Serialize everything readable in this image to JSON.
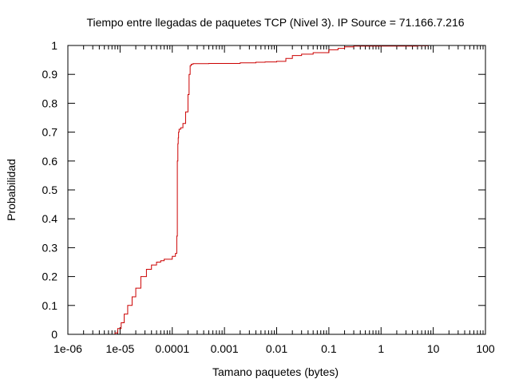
{
  "chart_data": {
    "type": "line",
    "title": "Tiempo entre llegadas de paquetes TCP (Nivel 3). IP Source = 71.166.7.216",
    "xlabel": "Tamano paquetes (bytes)",
    "ylabel": "Probabilidad",
    "x_scale": "log",
    "xlim": [
      1e-06,
      100
    ],
    "ylim": [
      0,
      1
    ],
    "x_ticks": [
      1e-06,
      1e-05,
      0.0001,
      0.001,
      0.01,
      0.1,
      1,
      10,
      100
    ],
    "x_tick_labels": [
      "1e-06",
      "1e-05",
      "0.0001",
      "0.001",
      "0.01",
      "0.1",
      "1",
      "10",
      "100"
    ],
    "y_ticks": [
      0,
      0.1,
      0.2,
      0.3,
      0.4,
      0.5,
      0.6,
      0.7,
      0.8,
      0.9,
      1
    ],
    "y_tick_labels": [
      "0",
      "0.1",
      "0.2",
      "0.3",
      "0.4",
      "0.5",
      "0.6",
      "0.7",
      "0.8",
      "0.9",
      "1"
    ],
    "grid": false,
    "legend": "none",
    "line_color": "#cc0000",
    "series": [
      {
        "x": [
          7e-06,
          8e-06,
          9e-06,
          1.05e-05,
          1.2e-05,
          1.4e-05,
          1.7e-05,
          2e-05,
          2.5e-05,
          3.2e-05,
          4e-05,
          5e-05,
          6e-05,
          7e-05,
          8.5e-05,
          0.0001,
          0.000115,
          0.000122,
          0.000125,
          0.000128,
          0.00013,
          0.000132,
          0.000135,
          0.000145,
          0.00016,
          0.00018,
          0.0002,
          0.00021,
          0.00022,
          0.00023,
          0.00025,
          0.0003,
          0.0005,
          0.001,
          0.002,
          0.004,
          0.006,
          0.01,
          0.015,
          0.02,
          0.03,
          0.05,
          0.1,
          0.15,
          0.2,
          0.3,
          1,
          5,
          8
        ],
        "y": [
          0,
          0.005,
          0.02,
          0.04,
          0.07,
          0.1,
          0.13,
          0.16,
          0.2,
          0.225,
          0.24,
          0.25,
          0.255,
          0.26,
          0.26,
          0.27,
          0.28,
          0.34,
          0.6,
          0.66,
          0.68,
          0.7,
          0.71,
          0.715,
          0.73,
          0.77,
          0.83,
          0.9,
          0.93,
          0.935,
          0.937,
          0.937,
          0.938,
          0.938,
          0.94,
          0.942,
          0.943,
          0.945,
          0.955,
          0.965,
          0.97,
          0.975,
          0.985,
          0.99,
          0.995,
          0.998,
          0.998,
          0.999,
          1
        ]
      }
    ]
  }
}
